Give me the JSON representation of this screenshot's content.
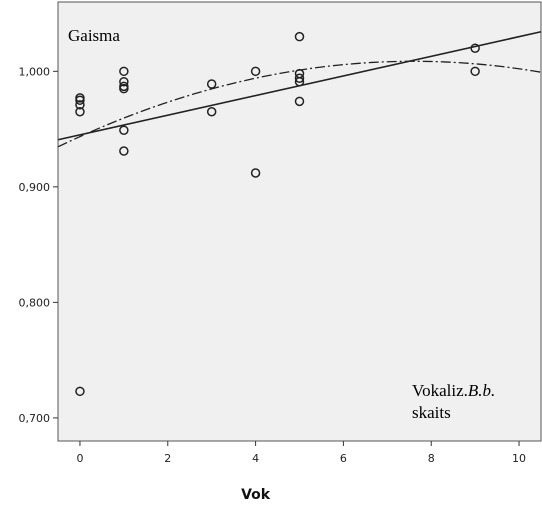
{
  "chart_data": {
    "type": "scatter",
    "title": "",
    "xlabel": "Vok",
    "ylabel": "",
    "xlim": [
      -0.5,
      10.5
    ],
    "ylim": [
      0.68,
      1.06
    ],
    "x_ticks": [
      0,
      2,
      4,
      6,
      8,
      10
    ],
    "x_tick_labels": [
      "0",
      "2",
      "4",
      "6",
      "8",
      "10"
    ],
    "y_ticks": [
      0.7,
      0.8,
      0.9,
      1.0
    ],
    "y_tick_labels": [
      "0,700",
      "0,800",
      "0,900",
      "1,000"
    ],
    "grid": false,
    "panel_label": "Gaisma",
    "annotation": {
      "line1_plain": "Vokaliz.",
      "line1_italic": "B.b.",
      "line2": "skaits"
    },
    "points": [
      {
        "x": 0,
        "y": 0.977
      },
      {
        "x": 0,
        "y": 0.975
      },
      {
        "x": 0,
        "y": 0.971
      },
      {
        "x": 0,
        "y": 0.965
      },
      {
        "x": 0,
        "y": 0.723
      },
      {
        "x": 1,
        "y": 1.0
      },
      {
        "x": 1,
        "y": 0.991
      },
      {
        "x": 1,
        "y": 0.987
      },
      {
        "x": 1,
        "y": 0.985
      },
      {
        "x": 1,
        "y": 0.949
      },
      {
        "x": 1,
        "y": 0.931
      },
      {
        "x": 3,
        "y": 0.989
      },
      {
        "x": 3,
        "y": 0.965
      },
      {
        "x": 4,
        "y": 1.0
      },
      {
        "x": 4,
        "y": 0.912
      },
      {
        "x": 5,
        "y": 1.03
      },
      {
        "x": 5,
        "y": 0.998
      },
      {
        "x": 5,
        "y": 0.994
      },
      {
        "x": 5,
        "y": 0.991
      },
      {
        "x": 5,
        "y": 0.974
      },
      {
        "x": 9,
        "y": 1.02
      },
      {
        "x": 9,
        "y": 1.0
      }
    ],
    "linear_fit": {
      "style": "solid",
      "intercept": 0.945,
      "slope": 0.0085
    },
    "quadratic_fit": {
      "style": "dash-dot",
      "a": 0.9435,
      "b": 0.01715,
      "c": -0.001128
    },
    "colors": {
      "plot_background": "#f0f0f0",
      "marker": "#222222",
      "lines": "#222222"
    }
  }
}
